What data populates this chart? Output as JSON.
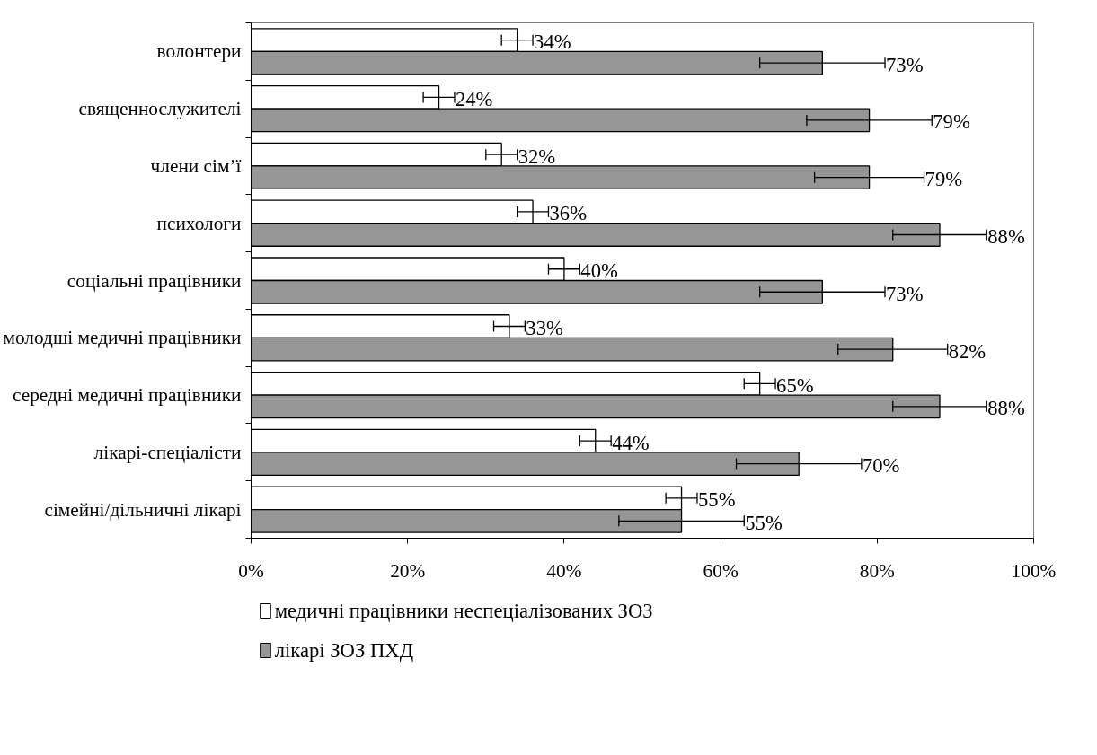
{
  "chart_data": {
    "type": "bar",
    "orientation": "horizontal",
    "categories": [
      "волонтери",
      "священнослужителі",
      "члени сім’ї",
      "психологи",
      "соціальні працівники",
      "молодші медичні працівники",
      "середні медичні працівники",
      "лікарі-спеціалісти",
      "сімейні/дільничні лікарі"
    ],
    "series": [
      {
        "name": "медичні працівники неспеціалізованих ЗОЗ",
        "color": "#ffffff",
        "values": [
          34,
          24,
          32,
          36,
          40,
          33,
          65,
          44,
          55
        ],
        "errors": [
          2,
          2,
          2,
          2,
          2,
          2,
          2,
          2,
          2
        ],
        "value_labels": [
          "34%",
          "24%",
          "32%",
          "36%",
          "40%",
          "33%",
          "65%",
          "44%",
          "55%"
        ]
      },
      {
        "name": "лікарі ЗОЗ ПХД",
        "color": "#969696",
        "values": [
          73,
          79,
          79,
          88,
          73,
          82,
          88,
          70,
          55
        ],
        "errors": [
          8,
          8,
          7,
          6,
          8,
          7,
          6,
          8,
          8
        ],
        "value_labels": [
          "73%",
          "79%",
          "79%",
          "88%",
          "73%",
          "82%",
          "88%",
          "70%",
          "55%"
        ]
      }
    ],
    "xlim": [
      0,
      100
    ],
    "xticks": [
      {
        "value": 0,
        "label": "0%"
      },
      {
        "value": 20,
        "label": "20%"
      },
      {
        "value": 40,
        "label": "40%"
      },
      {
        "value": 60,
        "label": "60%"
      },
      {
        "value": 80,
        "label": "80%"
      },
      {
        "value": 100,
        "label": "100%"
      }
    ],
    "grid": false,
    "legend": "bottom"
  }
}
